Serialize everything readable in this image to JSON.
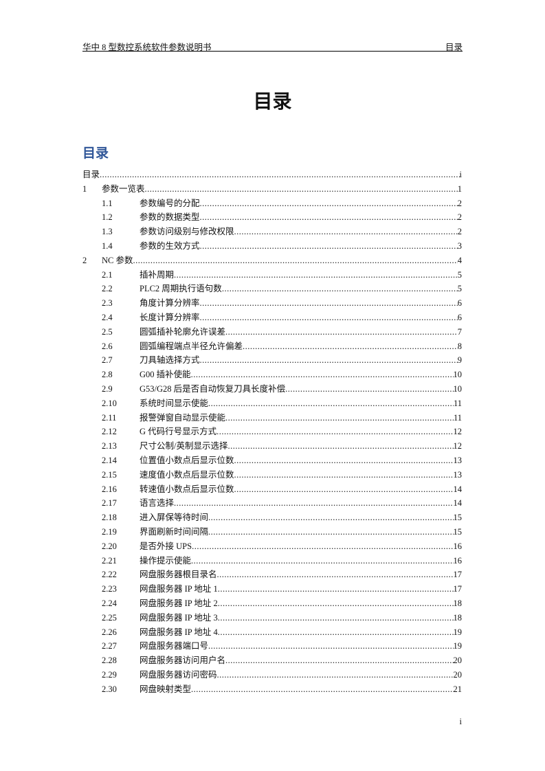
{
  "header": {
    "left": "华中 8 型数控系统软件参数说明书",
    "right": "目录"
  },
  "title": "目录",
  "toc_heading": "目录",
  "toc": [
    {
      "level": 0,
      "num": "",
      "text": "目录",
      "page": "i"
    },
    {
      "level": 1,
      "num": "1",
      "text": "参数一览表",
      "page": "1"
    },
    {
      "level": 2,
      "num": "1.1",
      "text": "参数编号的分配",
      "page": "2"
    },
    {
      "level": 2,
      "num": "1.2",
      "text": "参数的数据类型",
      "page": "2"
    },
    {
      "level": 2,
      "num": "1.3",
      "text": "参数访问级别与修改权限",
      "page": "2"
    },
    {
      "level": 2,
      "num": "1.4",
      "text": "参数的生效方式",
      "page": "3"
    },
    {
      "level": 1,
      "num": "2",
      "text": "NC 参数",
      "page": "4"
    },
    {
      "level": 2,
      "num": "2.1",
      "text": "插补周期",
      "page": "5"
    },
    {
      "level": 2,
      "num": "2.2",
      "text": "PLC2 周期执行语句数",
      "page": "5"
    },
    {
      "level": 2,
      "num": "2.3",
      "text": "角度计算分辨率",
      "page": "6"
    },
    {
      "level": 2,
      "num": "2.4",
      "text": "长度计算分辨率",
      "page": "6"
    },
    {
      "level": 2,
      "num": "2.5",
      "text": "圆弧插补轮廓允许误差",
      "page": "7"
    },
    {
      "level": 2,
      "num": "2.6",
      "text": "圆弧编程端点半径允许偏差",
      "page": "8"
    },
    {
      "level": 2,
      "num": "2.7",
      "text": "刀具轴选择方式",
      "page": "9"
    },
    {
      "level": 2,
      "num": "2.8",
      "text": "G00 插补使能",
      "page": "10"
    },
    {
      "level": 2,
      "num": "2.9",
      "text": "G53/G28 后是否自动恢复刀具长度补偿",
      "page": "10"
    },
    {
      "level": 2,
      "num": "2.10",
      "text": "系统时间显示使能",
      "page": "11"
    },
    {
      "level": 2,
      "num": "2.11",
      "text": "报警弹窗自动显示使能",
      "page": "11"
    },
    {
      "level": 2,
      "num": "2.12",
      "text": "G 代码行号显示方式",
      "page": "12"
    },
    {
      "level": 2,
      "num": "2.13",
      "text": "尺寸公制/英制显示选择",
      "page": "12"
    },
    {
      "level": 2,
      "num": "2.14",
      "text": "位置值小数点后显示位数",
      "page": "13"
    },
    {
      "level": 2,
      "num": "2.15",
      "text": "速度值小数点后显示位数",
      "page": "13"
    },
    {
      "level": 2,
      "num": "2.16",
      "text": "转速值小数点后显示位数",
      "page": "14"
    },
    {
      "level": 2,
      "num": "2.17",
      "text": "语言选择",
      "page": "14"
    },
    {
      "level": 2,
      "num": "2.18",
      "text": "进入屏保等待时间",
      "page": "15"
    },
    {
      "level": 2,
      "num": "2.19",
      "text": "界面刷新时间间隔",
      "page": "15"
    },
    {
      "level": 2,
      "num": "2.20",
      "text": "是否外接 UPS",
      "page": "16"
    },
    {
      "level": 2,
      "num": "2.21",
      "text": "操作提示使能",
      "page": "16"
    },
    {
      "level": 2,
      "num": "2.22",
      "text": "网盘服务器根目录名",
      "page": "17"
    },
    {
      "level": 2,
      "num": "2.23",
      "text": "网盘服务器 IP 地址 1",
      "page": "17"
    },
    {
      "level": 2,
      "num": "2.24",
      "text": "网盘服务器 IP 地址 2",
      "page": "18"
    },
    {
      "level": 2,
      "num": "2.25",
      "text": "网盘服务器 IP 地址 3",
      "page": "18"
    },
    {
      "level": 2,
      "num": "2.26",
      "text": "网盘服务器 IP 地址 4",
      "page": "19"
    },
    {
      "level": 2,
      "num": "2.27",
      "text": "网盘服务器端口号",
      "page": "19"
    },
    {
      "level": 2,
      "num": "2.28",
      "text": "网盘服务器访问用户名",
      "page": "20"
    },
    {
      "level": 2,
      "num": "2.29",
      "text": "网盘服务器访问密码",
      "page": "20"
    },
    {
      "level": 2,
      "num": "2.30",
      "text": "网盘映射类型",
      "page": "21"
    }
  ],
  "footer": {
    "page_number": "i"
  }
}
